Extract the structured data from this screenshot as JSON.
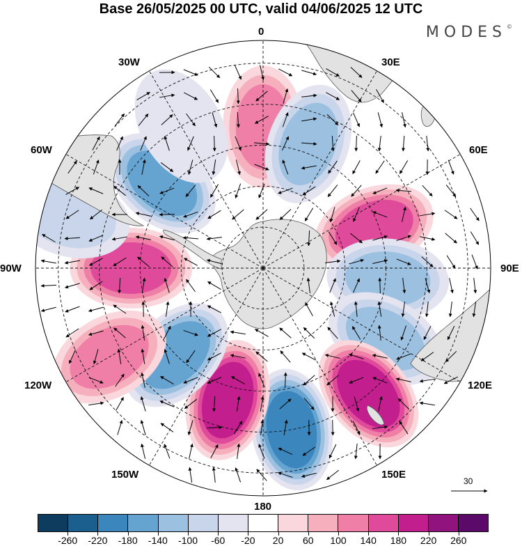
{
  "title": "Base 26/05/2025 00 UTC, valid 04/06/2025 12 UTC",
  "brand": "MODES",
  "brand_mark": "©",
  "longitude_labels": [
    "0",
    "30E",
    "60E",
    "90E",
    "120E",
    "150E",
    "180",
    "150W",
    "120W",
    "90W",
    "60W",
    "30W"
  ],
  "vector_reference": {
    "value": "30"
  },
  "colorbar": {
    "levels": [
      "-260",
      "-220",
      "-180",
      "-140",
      "-100",
      "-60",
      "-20",
      "20",
      "60",
      "100",
      "140",
      "180",
      "220",
      "260"
    ],
    "colors": [
      "#0d3c5e",
      "#1b5f8f",
      "#3a86bd",
      "#65a3d1",
      "#9cc0e0",
      "#c8d5ea",
      "#e4e4f1",
      "#ffffff",
      "#fad7dc",
      "#f6b0bd",
      "#ef7fa6",
      "#df4a9b",
      "#c21e8d",
      "#90137e",
      "#5b0a6a"
    ]
  },
  "chart_data": {
    "type": "heatmap",
    "projection": "south-polar-stereographic",
    "variable_units": "colored anomaly field with wind vectors",
    "color_levels": [
      -260,
      -220,
      -180,
      -140,
      -100,
      -60,
      -20,
      20,
      60,
      100,
      140,
      180,
      220,
      260
    ],
    "anomaly_centers": [
      {
        "lon": "0",
        "sign": "positive",
        "peak": 150
      },
      {
        "lon": "20E",
        "sign": "negative",
        "peak": -120
      },
      {
        "lon": "70E",
        "sign": "positive",
        "peak": 170
      },
      {
        "lon": "95E",
        "sign": "negative",
        "peak": -130
      },
      {
        "lon": "120E",
        "sign": "negative",
        "peak": -150
      },
      {
        "lon": "140E",
        "sign": "positive",
        "peak": 230
      },
      {
        "lon": "170E",
        "sign": "negative",
        "peak": -200
      },
      {
        "lon": "165W",
        "sign": "positive",
        "peak": 220
      },
      {
        "lon": "135W",
        "sign": "negative",
        "peak": -190
      },
      {
        "lon": "120W",
        "sign": "positive",
        "peak": 120
      },
      {
        "lon": "90W",
        "sign": "positive",
        "peak": 190
      },
      {
        "lon": "75W",
        "sign": "negative",
        "peak": -100
      },
      {
        "lon": "50W",
        "sign": "negative",
        "peak": -160
      },
      {
        "lon": "30W",
        "sign": "negative",
        "peak": -60
      }
    ],
    "vector_reference_value": 30,
    "graticule": true
  }
}
